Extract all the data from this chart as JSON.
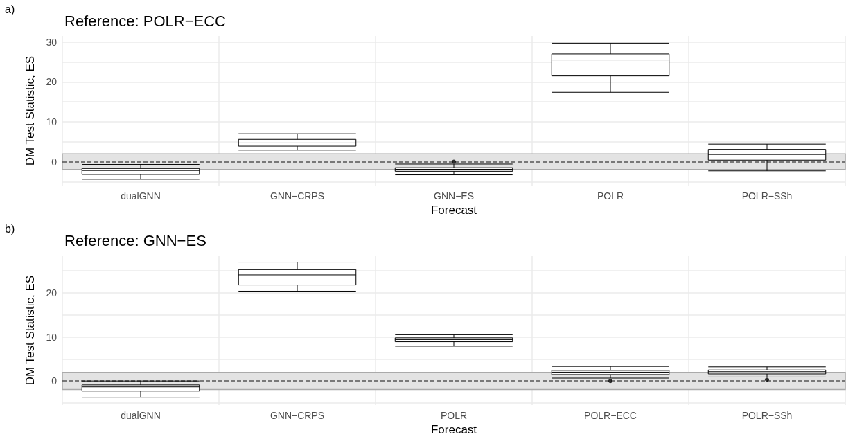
{
  "chart_data": [
    {
      "type": "box",
      "title": "Reference: POLR−ECC",
      "annotations": [
        "a)"
      ],
      "xlabel": "Forecast",
      "ylabel": "DM Test Statistic, ES",
      "categories": [
        "dualGNN",
        "GNN−CRPS",
        "GNN−ES",
        "POLR",
        "POLR−SSh"
      ],
      "boxes": [
        {
          "low": -4.4,
          "q1": -3.2,
          "median": -2.2,
          "q3": -1.7,
          "high": -0.7
        },
        {
          "low": 2.9,
          "q1": 3.9,
          "median": 4.7,
          "q3": 5.6,
          "high": 7.0
        },
        {
          "low": -3.3,
          "q1": -2.4,
          "median": -1.9,
          "q3": -1.5,
          "high": -0.6,
          "outliers": [
            0
          ]
        },
        {
          "low": 17.4,
          "q1": 21.5,
          "median": 25.5,
          "q3": 27.0,
          "high": 29.7
        },
        {
          "low": -2.3,
          "q1": 0.4,
          "median": 1.8,
          "q3": 3.1,
          "high": 4.4
        }
      ],
      "ylim": [
        -6,
        31.5
      ],
      "yticks": [
        {
          "value": -5,
          "label": null
        },
        0,
        {
          "value": 5,
          "label": null
        },
        10,
        {
          "value": 15,
          "label": null
        },
        20,
        {
          "value": 25,
          "label": null
        },
        30
      ],
      "grid": true,
      "ref_lines": [
        {
          "axis": "y",
          "value": 0,
          "line_style": "dashed",
          "color": "#555555"
        }
      ],
      "bands": [
        {
          "axis": "y",
          "from": -1.96,
          "to": 1.96,
          "color": "#e3e3e3"
        }
      ]
    },
    {
      "type": "box",
      "title": "Reference: GNN−ES",
      "annotations": [
        "b)"
      ],
      "xlabel": "Forecast",
      "ylabel": "DM Test Statistic, ES",
      "categories": [
        "dualGNN",
        "GNN−CRPS",
        "POLR",
        "POLR−ECC",
        "POLR−SSh"
      ],
      "boxes": [
        {
          "low": -3.7,
          "q1": -2.3,
          "median": -1.35,
          "q3": -0.9,
          "high": 0
        },
        {
          "low": 20.4,
          "q1": 21.8,
          "median": 24.1,
          "q3": 25.3,
          "high": 27.0
        },
        {
          "low": 7.9,
          "q1": 8.9,
          "median": 9.4,
          "q3": 9.8,
          "high": 10.5
        },
        {
          "low": 0.65,
          "q1": 1.45,
          "median": 2.0,
          "q3": 2.4,
          "high": 3.3,
          "outliers": [
            0
          ]
        },
        {
          "low": 0.9,
          "q1": 1.6,
          "median": 2.1,
          "q3": 2.5,
          "high": 3.2,
          "outliers": [
            0.3
          ]
        }
      ],
      "ylim": [
        -5.5,
        28.5
      ],
      "yticks": [
        {
          "value": -5,
          "label": null
        },
        0,
        {
          "value": 5,
          "label": null
        },
        10,
        {
          "value": 15,
          "label": null
        },
        20,
        {
          "value": 25,
          "label": null
        }
      ],
      "grid": true,
      "ref_lines": [
        {
          "axis": "y",
          "value": 0,
          "line_style": "dashed",
          "color": "#555555"
        }
      ],
      "bands": [
        {
          "axis": "y",
          "from": -1.96,
          "to": 1.96,
          "color": "#e3e3e3"
        }
      ]
    }
  ]
}
